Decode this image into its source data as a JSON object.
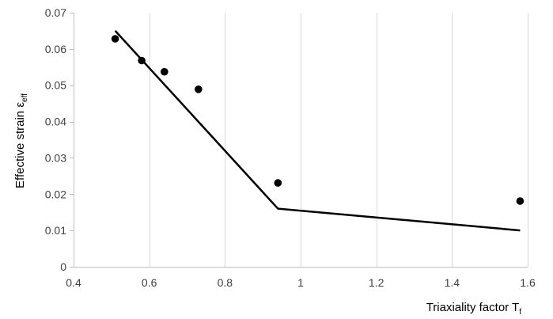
{
  "chart_data": {
    "type": "scatter",
    "xlabel": {
      "main": "Triaxiality factor T",
      "sub": "f"
    },
    "ylabel": {
      "main": "Effective strain ε",
      "sub": "eff"
    },
    "xlim": [
      0.4,
      1.6
    ],
    "ylim": [
      0,
      0.07
    ],
    "x_ticks": [
      "0.4",
      "0.6",
      "0.8",
      "1",
      "1.2",
      "1.4",
      "1.6"
    ],
    "y_ticks": [
      "0",
      "0.01",
      "0.02",
      "0.03",
      "0.04",
      "0.05",
      "0.06",
      "0.07"
    ],
    "grid": {
      "vertical": true,
      "horizontal": false
    },
    "series": [
      {
        "kind": "markers",
        "x": [
          0.51,
          0.58,
          0.64,
          0.73,
          0.94,
          1.58
        ],
        "y": [
          0.0628,
          0.0568,
          0.0537,
          0.0489,
          0.0231,
          0.0181
        ],
        "color": "#000000"
      },
      {
        "kind": "line",
        "x": [
          0.51,
          0.64,
          0.94,
          1.58
        ],
        "y": [
          0.065,
          0.0502,
          0.016,
          0.01
        ],
        "color": "#000000"
      }
    ]
  }
}
